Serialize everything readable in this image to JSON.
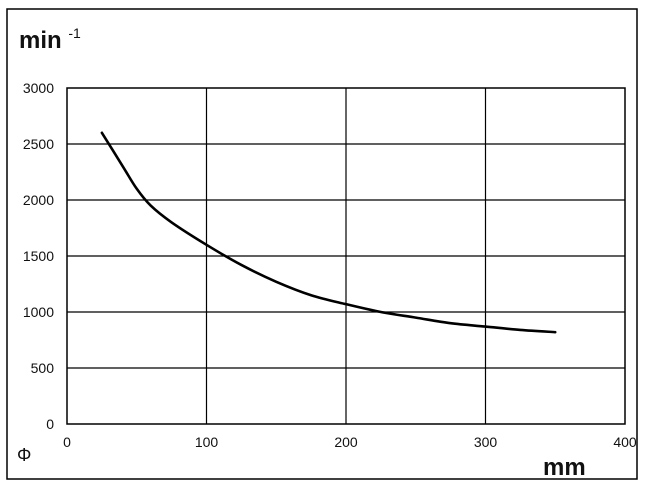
{
  "chart_data": {
    "type": "line",
    "y_unit": {
      "base": "min",
      "superscript": "-1"
    },
    "x_unit": "mm",
    "x_symbol": "Φ",
    "xlim": [
      0,
      400
    ],
    "ylim": [
      0,
      3000
    ],
    "x_ticks": [
      0,
      100,
      200,
      300,
      400
    ],
    "y_ticks": [
      0,
      500,
      1000,
      1500,
      2000,
      2500,
      3000
    ],
    "grid": true,
    "series": [
      {
        "x": [
          25,
          40,
          50,
          60,
          75,
          100,
          125,
          150,
          175,
          200,
          225,
          250,
          275,
          300,
          325,
          350
        ],
        "y": [
          2600,
          2300,
          2100,
          1950,
          1800,
          1600,
          1420,
          1270,
          1150,
          1070,
          1000,
          950,
          900,
          870,
          840,
          820
        ]
      }
    ],
    "colors": {
      "line": "#000000",
      "grid": "#000000",
      "frame": "#000000"
    }
  }
}
